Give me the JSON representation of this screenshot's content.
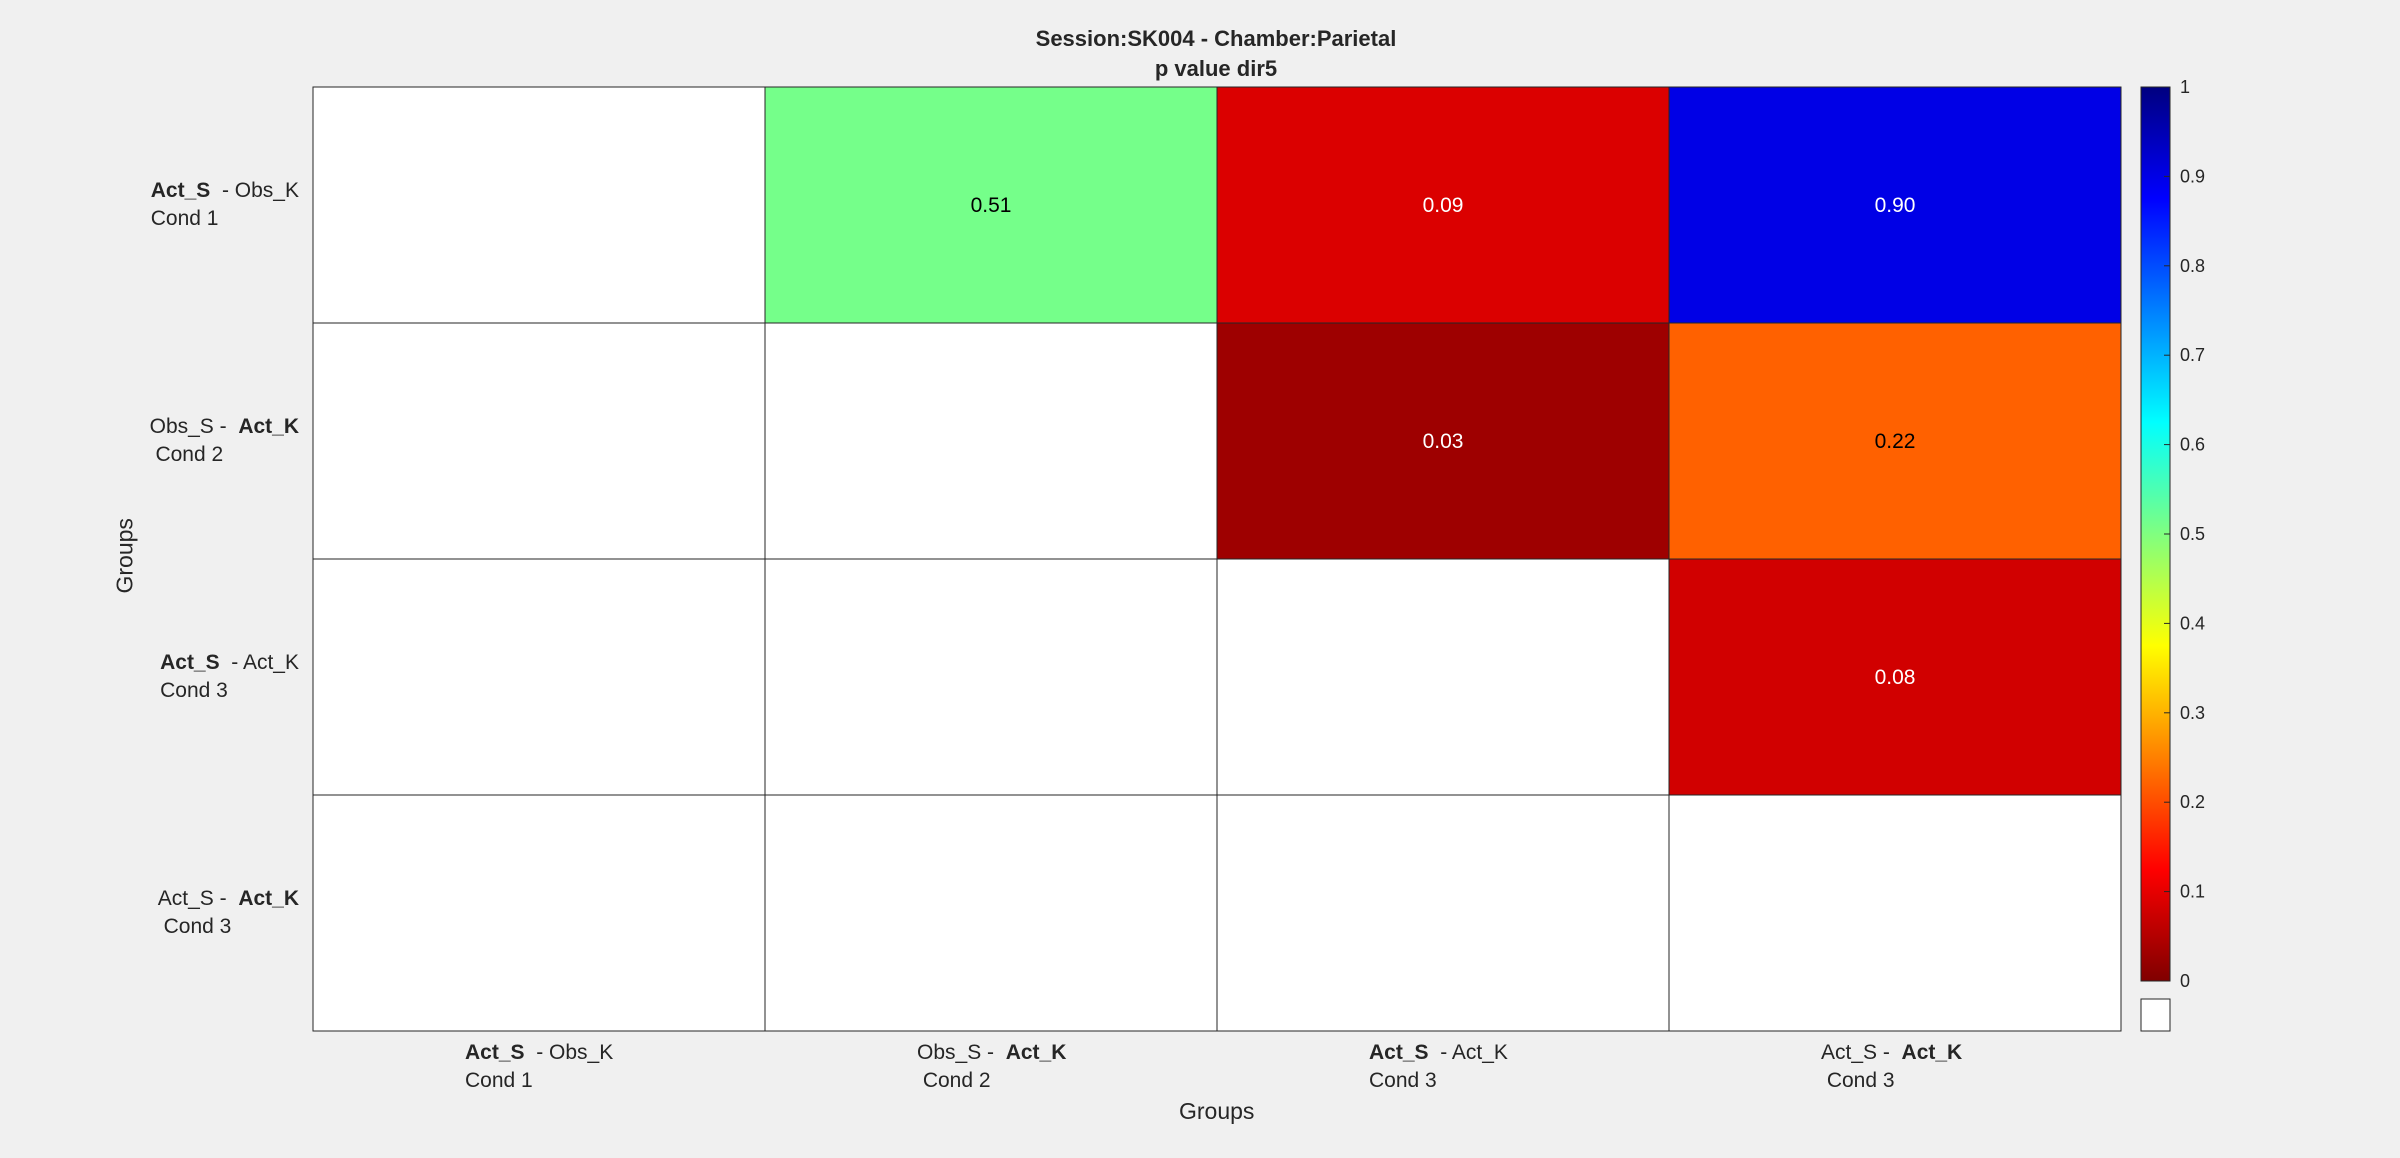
{
  "chart_data": {
    "type": "heatmap",
    "title": "Session:SK004 - Chamber:Parietal",
    "subtitle": "p value dir5",
    "xlabel": "Groups",
    "ylabel": "Groups",
    "categories": [
      {
        "line1_bold": "Act_S",
        "line1_rest": "  - Obs_K",
        "line1_order": "bold-first",
        "line2": "Cond 1"
      },
      {
        "line1_bold": "Act_K",
        "line1_rest": "Obs_S -  ",
        "line1_order": "rest-first",
        "line2": " Cond 2"
      },
      {
        "line1_bold": "Act_S",
        "line1_rest": "  - Act_K",
        "line1_order": "bold-first",
        "line2": "Cond 3"
      },
      {
        "line1_bold": "Act_K",
        "line1_rest": "Act_S -  ",
        "line1_order": "rest-first",
        "line2": " Cond 3"
      }
    ],
    "values": [
      [
        null,
        0.51,
        0.09,
        0.9
      ],
      [
        null,
        null,
        0.03,
        0.22
      ],
      [
        null,
        null,
        null,
        0.08
      ],
      [
        null,
        null,
        null,
        null
      ]
    ],
    "cell_labels": [
      [
        "",
        "0.51",
        "0.09",
        "0.90"
      ],
      [
        "",
        "",
        "0.03",
        "0.22"
      ],
      [
        "",
        "",
        "",
        "0.08"
      ],
      [
        "",
        "",
        "",
        ""
      ]
    ],
    "clim": [
      0,
      1
    ],
    "colormap": "jet-reversed",
    "colorbar_ticks": [
      "0",
      "0.1",
      "0.2",
      "0.3",
      "0.4",
      "0.5",
      "0.6",
      "0.7",
      "0.8",
      "0.9",
      "1"
    ],
    "colorbar_nan_color": "#ffffff",
    "grid": true,
    "legend": "colorbar-right"
  }
}
